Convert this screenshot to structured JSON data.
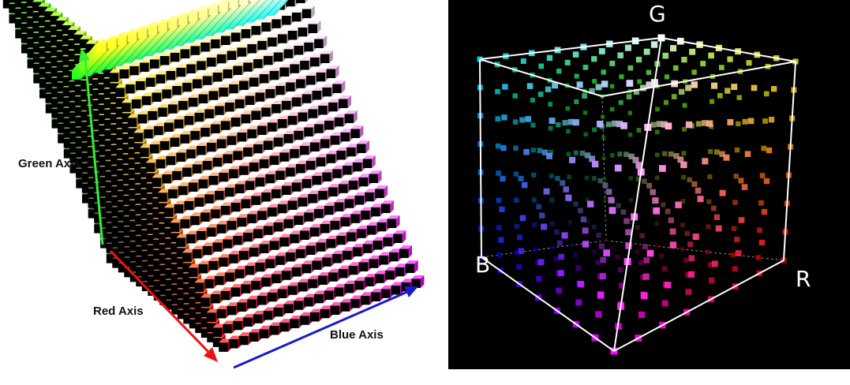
{
  "left_figure": {
    "green_axis_label": "Green Axis",
    "red_axis_label": "Red Axis",
    "blue_axis_label": "Blue Axis",
    "grid_divisions": 20,
    "colors": {
      "green_axis_arrow": "#33ee33",
      "red_axis_arrow": "#ee1111",
      "blue_axis_arrow": "#1a1acc"
    }
  },
  "right_figure": {
    "corner_labels": {
      "g": "G",
      "b": "B",
      "r": "R"
    },
    "grid_divisions": 8,
    "colors": {
      "background": "#000000",
      "wireframe": "#ffffff"
    }
  }
}
